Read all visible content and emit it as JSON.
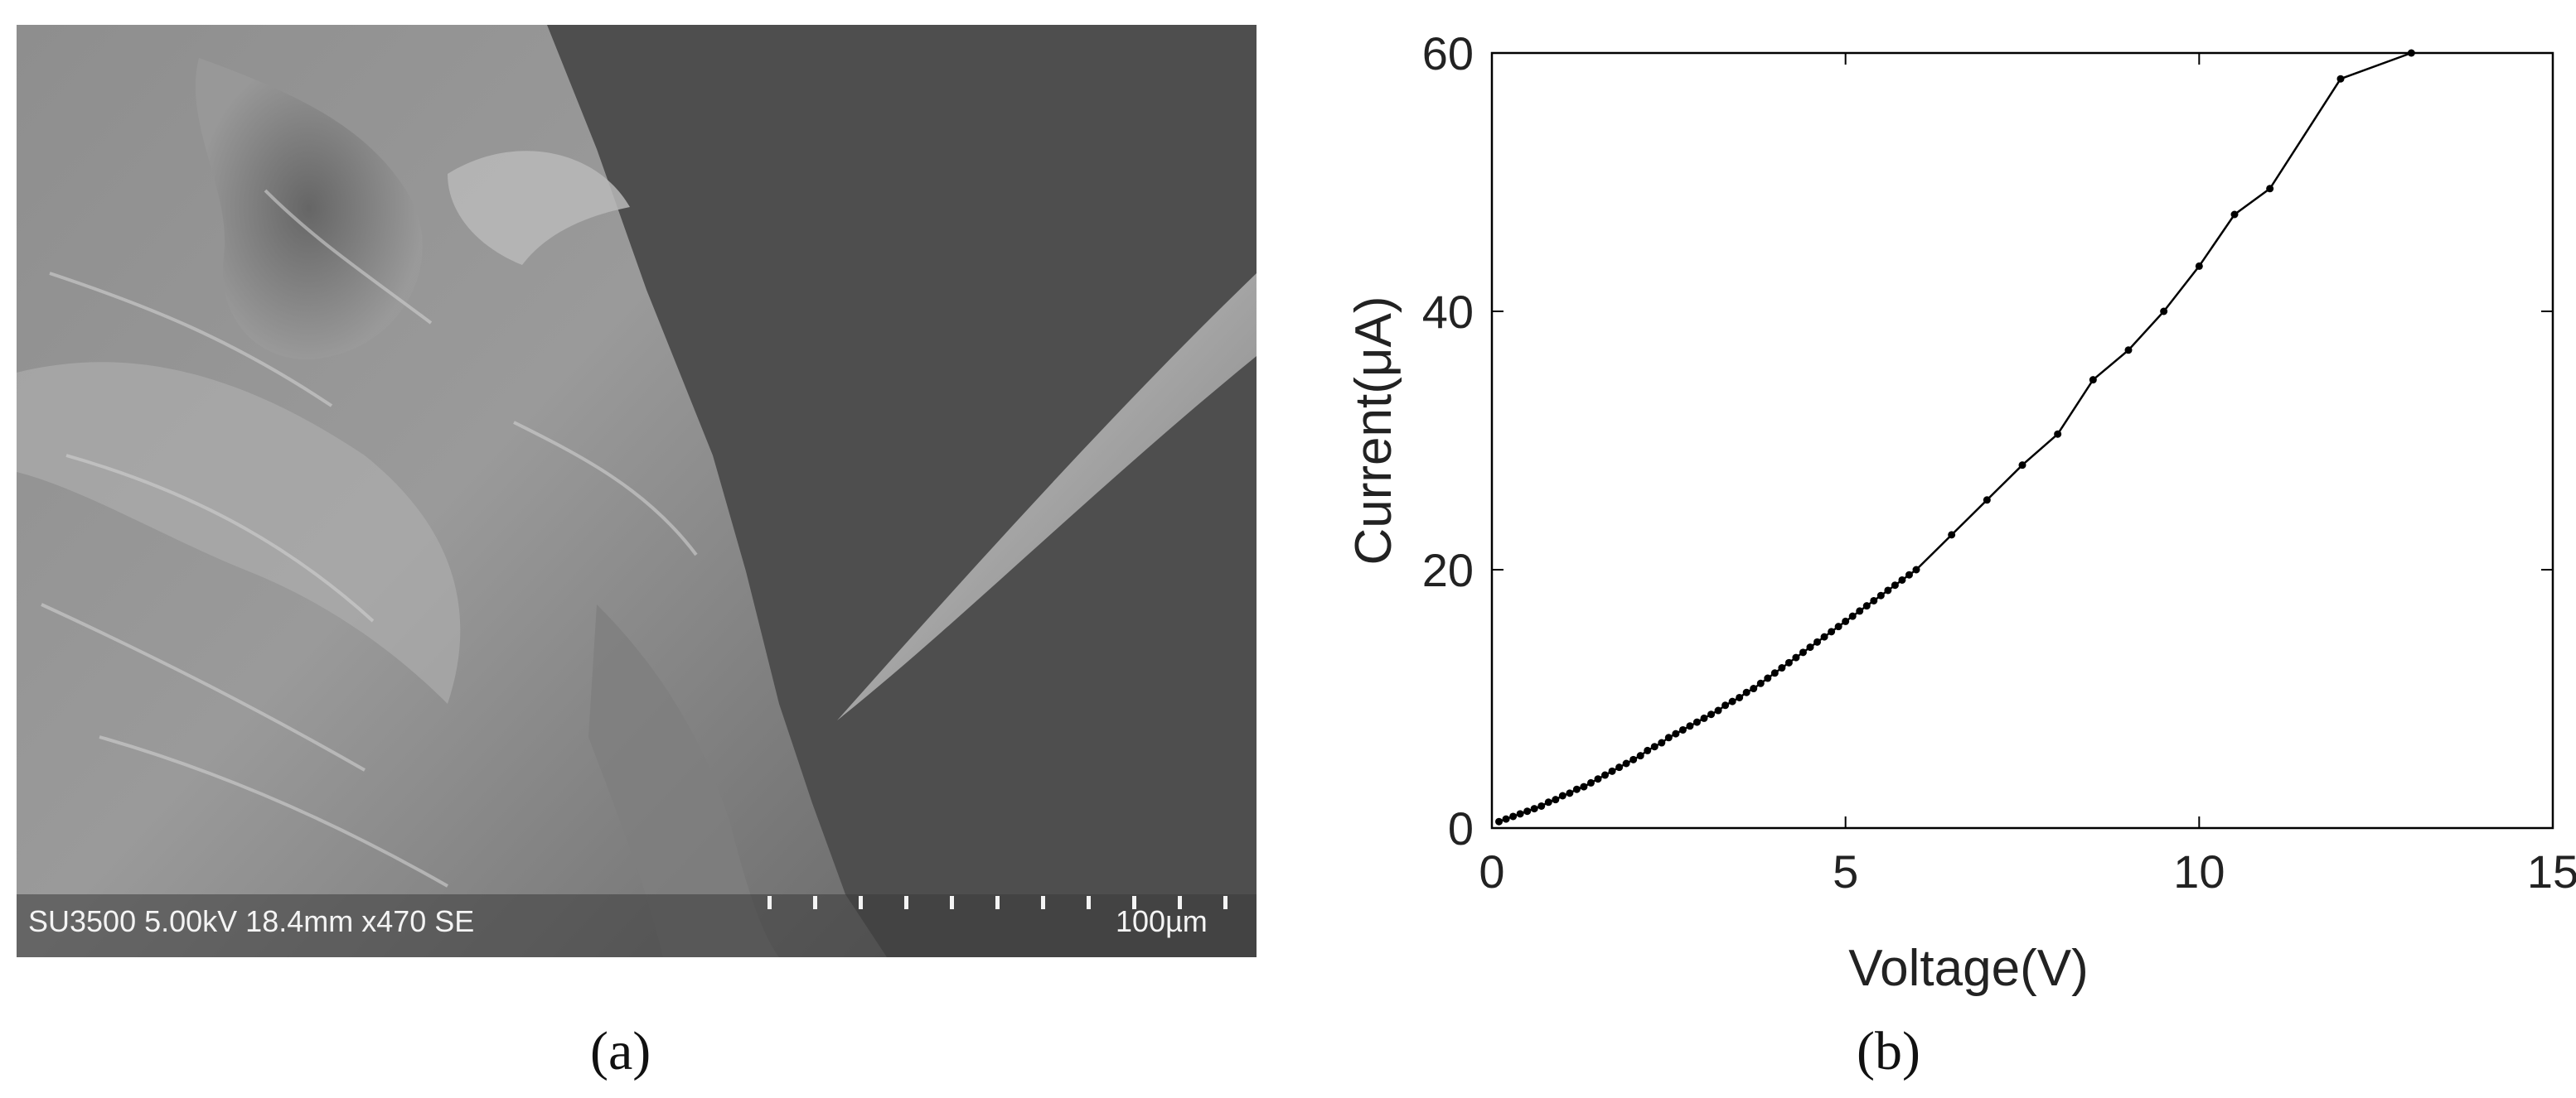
{
  "panels": {
    "a": {
      "caption": "(a)",
      "sem_info": "SU3500 5.00kV 18.4mm x470 SE",
      "scale_label": "100µm"
    },
    "b": {
      "caption": "(b)"
    }
  },
  "colors": {
    "line": "#000000",
    "axis": "#000000",
    "sem_background": "#4e4e4e"
  },
  "chart_data": {
    "type": "line",
    "title": "",
    "xlabel": "Voltage(V)",
    "ylabel": "Current(μA)",
    "xlim": [
      0,
      15
    ],
    "ylim": [
      0,
      60
    ],
    "xticks": [
      0,
      5,
      10,
      15
    ],
    "yticks": [
      0,
      20,
      40,
      60
    ],
    "grid": false,
    "series": [
      {
        "x": [
          0.1,
          0.2,
          0.3,
          0.4,
          0.5,
          0.6,
          0.7,
          0.8,
          0.9,
          1.0,
          1.1,
          1.2,
          1.3,
          1.4,
          1.5,
          1.6,
          1.7,
          1.8,
          1.9,
          2.0,
          2.1,
          2.2,
          2.3,
          2.4,
          2.5,
          2.6,
          2.7,
          2.8,
          2.9,
          3.0,
          3.1,
          3.2,
          3.3,
          3.4,
          3.5,
          3.6,
          3.7,
          3.8,
          3.9,
          4.0,
          4.1,
          4.2,
          4.3,
          4.4,
          4.5,
          4.6,
          4.7,
          4.8,
          4.9,
          5.0,
          5.1,
          5.2,
          5.3,
          5.4,
          5.5,
          5.6,
          5.7,
          5.8,
          5.9,
          6.0,
          6.5,
          7.0,
          7.5,
          8.0,
          8.5,
          9.0,
          9.5,
          10.0,
          10.5,
          11.0,
          12.0,
          13.0
        ],
        "y": [
          0.5,
          0.7,
          0.9,
          1.1,
          1.3,
          1.5,
          1.7,
          2.0,
          2.2,
          2.5,
          2.7,
          3.0,
          3.2,
          3.5,
          3.8,
          4.1,
          4.4,
          4.7,
          5.0,
          5.3,
          5.6,
          6.0,
          6.3,
          6.6,
          7.0,
          7.3,
          7.6,
          7.9,
          8.2,
          8.5,
          8.8,
          9.1,
          9.5,
          9.8,
          10.1,
          10.5,
          10.8,
          11.2,
          11.6,
          12.0,
          12.4,
          12.8,
          13.2,
          13.6,
          14.0,
          14.4,
          14.8,
          15.2,
          15.6,
          16.0,
          16.4,
          16.8,
          17.2,
          17.6,
          18.0,
          18.4,
          18.8,
          19.2,
          19.6,
          20.0,
          22.7,
          25.4,
          28.1,
          30.5,
          34.7,
          37.0,
          40.0,
          43.5,
          47.5,
          49.5,
          58.0,
          60.0
        ]
      }
    ]
  }
}
